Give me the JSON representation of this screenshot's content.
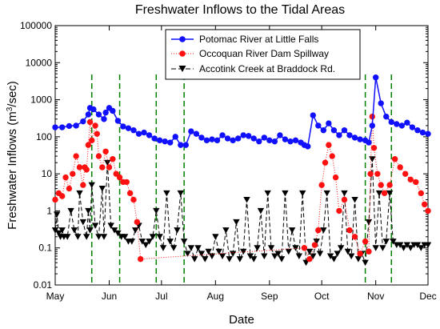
{
  "chart_data": {
    "type": "scatter",
    "title": "Freshwater Inflows to the Tidal Areas",
    "xlabel": "Date",
    "ylabel": "Freshwater Inflows (m³/sec)",
    "yscale": "log",
    "ylim": [
      0.01,
      100000
    ],
    "y_ticks": [
      "0.01",
      "0.1",
      "1",
      "10",
      "100",
      "1000",
      "10000",
      "100000"
    ],
    "x_ticks": [
      "May",
      "Jun",
      "Jul",
      "Aug",
      "Sep",
      "Oct",
      "Nov",
      "Dec"
    ],
    "xlim": [
      "May 1",
      "Dec 1"
    ],
    "legend_position": "top-right",
    "grid": false,
    "series": [
      {
        "name": "Potomac River at Little Falls",
        "color": "#1010ff",
        "marker": "circle",
        "line": "solid",
        "x": [
          "May 1",
          "May 5",
          "May 9",
          "May 13",
          "May 17",
          "May 20",
          "May 21",
          "May 23",
          "May 26",
          "May 29",
          "May 30",
          "Jun 1",
          "Jun 3",
          "Jun 6",
          "Jun 9",
          "Jun 12",
          "Jun 15",
          "Jun 18",
          "Jun 21",
          "Jun 24",
          "Jun 27",
          "Jun 30",
          "Jul 3",
          "Jul 6",
          "Jul 9",
          "Jul 12",
          "Jul 15",
          "Jul 18",
          "Jul 21",
          "Jul 24",
          "Jul 27",
          "Jul 30",
          "Aug 2",
          "Aug 5",
          "Aug 8",
          "Aug 11",
          "Aug 14",
          "Aug 17",
          "Aug 20",
          "Aug 23",
          "Aug 26",
          "Aug 29",
          "Sep 1",
          "Sep 4",
          "Sep 7",
          "Sep 10",
          "Sep 13",
          "Sep 16",
          "Sep 19",
          "Sep 21",
          "Sep 23",
          "Sep 26",
          "Sep 29",
          "Oct 2",
          "Oct 5",
          "Oct 8",
          "Oct 11",
          "Oct 14",
          "Oct 17",
          "Oct 20",
          "Oct 23",
          "Oct 26",
          "Oct 28",
          "Oct 30",
          "Nov 1",
          "Nov 4",
          "Nov 7",
          "Nov 10",
          "Nov 13",
          "Nov 16",
          "Nov 19",
          "Nov 22",
          "Nov 25",
          "Nov 28",
          "Dec 1"
        ],
        "values": [
          180,
          180,
          195,
          200,
          260,
          400,
          600,
          550,
          400,
          300,
          450,
          600,
          500,
          270,
          190,
          170,
          150,
          120,
          130,
          110,
          90,
          80,
          75,
          70,
          100,
          60,
          60,
          140,
          120,
          95,
          80,
          85,
          80,
          110,
          90,
          80,
          90,
          110,
          105,
          90,
          75,
          95,
          80,
          75,
          110,
          85,
          75,
          80,
          70,
          60,
          55,
          380,
          200,
          150,
          230,
          150,
          110,
          150,
          110,
          95,
          85,
          80,
          70,
          200,
          4000,
          800,
          350,
          250,
          220,
          200,
          240,
          180,
          150,
          130,
          120
        ]
      },
      {
        "name": "Occoquan River Dam Spillway",
        "color": "#ff1010",
        "marker": "circle",
        "line": "dotted",
        "x": [
          "May 1",
          "May 3",
          "May 5",
          "May 7",
          "May 9",
          "May 11",
          "May 13",
          "May 15",
          "May 17",
          "May 18",
          "May 19",
          "May 20",
          "May 21",
          "May 22",
          "May 24",
          "May 25",
          "May 26",
          "May 28",
          "May 30",
          "Jun 1",
          "Jun 3",
          "Jun 5",
          "Jun 7",
          "Jun 9",
          "Jun 11",
          "Jun 13",
          "Jun 15",
          "Jun 17",
          "Jun 19",
          "Sep 21",
          "Sep 24",
          "Sep 27",
          "Sep 29",
          "Oct 1",
          "Oct 3",
          "Oct 5",
          "Oct 7",
          "Oct 9",
          "Oct 11",
          "Oct 14",
          "Oct 17",
          "Oct 20",
          "Oct 23",
          "Oct 26",
          "Oct 28",
          "Oct 29",
          "Oct 30",
          "Oct 31",
          "Nov 2",
          "Nov 4",
          "Nov 6",
          "Nov 9",
          "Nov 12",
          "Nov 15",
          "Nov 18",
          "Nov 21",
          "Nov 24",
          "Nov 27",
          "Nov 29",
          "Dec 1"
        ],
        "values": [
          2,
          3,
          2.5,
          8,
          4,
          10,
          30,
          15,
          5,
          15,
          13,
          60,
          250,
          80,
          200,
          120,
          30,
          15,
          40,
          15,
          25,
          10,
          8,
          6,
          6,
          3,
          2,
          0.5,
          0.05,
          0.1,
          0.05,
          0.12,
          0.3,
          5,
          20,
          60,
          30,
          8,
          1,
          2,
          0.3,
          0.2,
          0.07,
          0.15,
          0.08,
          10,
          350,
          50,
          10,
          5,
          3,
          5,
          25,
          15,
          10,
          7,
          6,
          3,
          1.5,
          1
        ]
      },
      {
        "name": "Accotink Creek at Braddock Rd.",
        "color": "#000000",
        "marker": "triangle-down",
        "line": "dashed",
        "x": [
          "May 1",
          "May 2",
          "May 3",
          "May 4",
          "May 5",
          "May 6",
          "May 8",
          "May 10",
          "May 12",
          "May 14",
          "May 15",
          "May 17",
          "May 19",
          "May 20",
          "May 21",
          "May 22",
          "May 24",
          "May 26",
          "May 28",
          "May 29",
          "May 31",
          "Jun 2",
          "Jun 4",
          "Jun 6",
          "Jun 8",
          "Jun 10",
          "Jun 12",
          "Jun 14",
          "Jun 16",
          "Jun 18",
          "Jun 20",
          "Jun 22",
          "Jun 24",
          "Jun 26",
          "Jun 28",
          "Jun 30",
          "Jul 2",
          "Jul 4",
          "Jul 6",
          "Jul 8",
          "Jul 10",
          "Jul 12",
          "Jul 14",
          "Jul 16",
          "Jul 18",
          "Jul 20",
          "Jul 22",
          "Jul 24",
          "Jul 26",
          "Jul 28",
          "Jul 30",
          "Aug 1",
          "Aug 3",
          "Aug 5",
          "Aug 7",
          "Aug 9",
          "Aug 11",
          "Aug 13",
          "Aug 15",
          "Aug 17",
          "Aug 19",
          "Aug 21",
          "Aug 23",
          "Aug 25",
          "Aug 27",
          "Aug 29",
          "Aug 31",
          "Sep 2",
          "Sep 4",
          "Sep 6",
          "Sep 8",
          "Sep 10",
          "Sep 12",
          "Sep 14",
          "Sep 16",
          "Sep 18",
          "Sep 20",
          "Sep 22",
          "Sep 24",
          "Sep 26",
          "Sep 28",
          "Sep 30",
          "Oct 2",
          "Oct 4",
          "Oct 6",
          "Oct 8",
          "Oct 10",
          "Oct 12",
          "Oct 14",
          "Oct 16",
          "Oct 18",
          "Oct 20",
          "Oct 22",
          "Oct 24",
          "Oct 26",
          "Oct 28",
          "Oct 30",
          "Nov 1",
          "Nov 3",
          "Nov 5",
          "Nov 7",
          "Nov 9",
          "Nov 11",
          "Nov 13",
          "Nov 15",
          "Nov 17",
          "Nov 19",
          "Nov 21",
          "Nov 23",
          "Nov 25",
          "Nov 27",
          "Nov 29",
          "Dec 1"
        ],
        "values": [
          0.3,
          0.8,
          0.25,
          0.2,
          0.3,
          0.2,
          0.2,
          1,
          0.3,
          0.2,
          3,
          0.5,
          0.2,
          1,
          0.3,
          5,
          0.4,
          0.2,
          4,
          0.2,
          20,
          0.4,
          0.3,
          0.25,
          0.2,
          0.2,
          0.15,
          0.15,
          0.3,
          0.4,
          0.15,
          0.12,
          0.15,
          0.2,
          1,
          0.2,
          0.1,
          3,
          0.15,
          0.1,
          0.3,
          3,
          0.15,
          0.07,
          0.1,
          0.05,
          0.1,
          0.07,
          0.05,
          0.08,
          0.06,
          0.2,
          0.08,
          0.06,
          0.3,
          0.05,
          0.07,
          0.5,
          0.05,
          0.08,
          2,
          0.06,
          0.05,
          0.1,
          1,
          0.06,
          3,
          0.1,
          0.06,
          0.07,
          0.05,
          3,
          0.08,
          0.3,
          0.1,
          0.06,
          3,
          0.04,
          0.08,
          0.06,
          0.15,
          0.07,
          0.3,
          3,
          0.06,
          0.05,
          0.07,
          0.1,
          3,
          0.08,
          0.06,
          2,
          0.05,
          0.07,
          0.04,
          0.5,
          25,
          0.1,
          3,
          0.1,
          0.15,
          3,
          0.15,
          0.12,
          0.12,
          0.1,
          0.12,
          0.1,
          0.12,
          0.12,
          0.1,
          0.12,
          0.12
        ]
      }
    ],
    "reference_lines": {
      "color": "#008000",
      "style": "dashed",
      "orientation": "vertical",
      "x": [
        "May 22",
        "Jun 7",
        "Jun 28",
        "Jul 14",
        "Oct 26",
        "Nov 10"
      ]
    }
  }
}
